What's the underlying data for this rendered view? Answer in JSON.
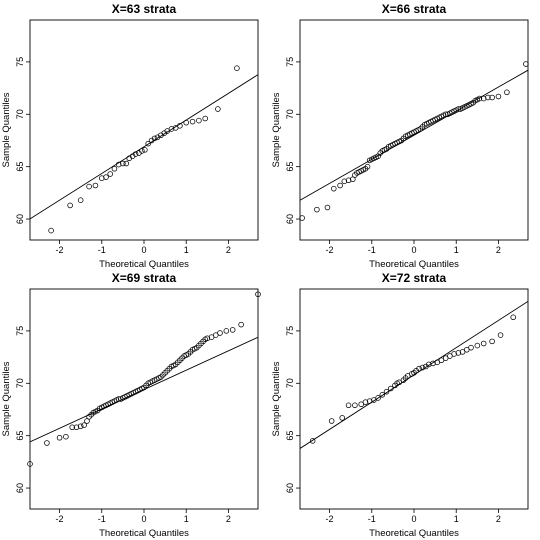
{
  "chart_data": [
    {
      "type": "scatter",
      "title": "X=63 strata",
      "xlabel": "Theoretical Quantiles",
      "ylabel": "Sample Quantiles",
      "x_ticks": [
        -2,
        -1,
        0,
        1,
        2
      ],
      "y_ticks": [
        60,
        65,
        70,
        75
      ],
      "xlim": [
        -2.7,
        2.7
      ],
      "ylim": [
        58,
        79
      ],
      "line": {
        "intercept": 66.9,
        "slope": 2.55
      },
      "points": {
        "x": [
          -2.2,
          -1.75,
          -1.5,
          -1.3,
          -1.15,
          -1.0,
          -0.9,
          -0.8,
          -0.7,
          -0.6,
          -0.5,
          -0.42,
          -0.35,
          -0.27,
          -0.2,
          -0.12,
          -0.05,
          0.02,
          0.1,
          0.18,
          0.25,
          0.32,
          0.4,
          0.48,
          0.55,
          0.65,
          0.75,
          0.85,
          1.0,
          1.15,
          1.3,
          1.45,
          1.75,
          2.2
        ],
        "y": [
          58.9,
          61.3,
          61.8,
          63.1,
          63.2,
          63.9,
          64.0,
          64.3,
          64.8,
          65.2,
          65.3,
          65.3,
          65.8,
          66.0,
          66.2,
          66.3,
          66.5,
          66.6,
          67.2,
          67.5,
          67.7,
          67.8,
          68.0,
          68.2,
          68.4,
          68.6,
          68.7,
          68.9,
          69.2,
          69.3,
          69.4,
          69.6,
          70.5,
          74.4
        ]
      }
    },
    {
      "type": "scatter",
      "title": "X=66 strata",
      "xlabel": "Theoretical Quantiles",
      "ylabel": "Sample Quantiles",
      "x_ticks": [
        -2,
        -1,
        0,
        1,
        2
      ],
      "y_ticks": [
        60,
        65,
        70,
        75
      ],
      "xlim": [
        -2.7,
        2.7
      ],
      "ylim": [
        58,
        79
      ],
      "line": {
        "intercept": 68.0,
        "slope": 2.3
      },
      "points": {
        "x": [
          -2.65,
          -2.3,
          -2.05,
          -1.9,
          -1.75,
          -1.65,
          -1.55,
          -1.45,
          -1.4,
          -1.35,
          -1.3,
          -1.25,
          -1.2,
          -1.15,
          -1.1,
          -1.05,
          -1.0,
          -0.95,
          -0.9,
          -0.85,
          -0.8,
          -0.75,
          -0.7,
          -0.65,
          -0.6,
          -0.55,
          -0.5,
          -0.45,
          -0.4,
          -0.35,
          -0.3,
          -0.25,
          -0.2,
          -0.15,
          -0.1,
          -0.05,
          0.0,
          0.05,
          0.1,
          0.15,
          0.2,
          0.25,
          0.3,
          0.35,
          0.4,
          0.45,
          0.5,
          0.55,
          0.6,
          0.65,
          0.7,
          0.75,
          0.8,
          0.85,
          0.9,
          0.95,
          1.0,
          1.05,
          1.1,
          1.15,
          1.2,
          1.25,
          1.3,
          1.35,
          1.4,
          1.45,
          1.5,
          1.55,
          1.65,
          1.75,
          1.85,
          2.0,
          2.2,
          2.65
        ],
        "y": [
          60.1,
          60.9,
          61.1,
          62.9,
          63.2,
          63.6,
          63.7,
          63.8,
          64.2,
          64.4,
          64.5,
          64.6,
          64.7,
          64.8,
          65.0,
          65.6,
          65.7,
          65.8,
          65.9,
          66.0,
          66.3,
          66.5,
          66.6,
          66.7,
          66.9,
          67.0,
          67.1,
          67.2,
          67.3,
          67.4,
          67.5,
          67.7,
          67.9,
          68.0,
          68.1,
          68.2,
          68.3,
          68.4,
          68.5,
          68.6,
          68.8,
          69.0,
          69.1,
          69.2,
          69.3,
          69.4,
          69.5,
          69.6,
          69.7,
          69.8,
          69.9,
          70.0,
          70.0,
          70.1,
          70.2,
          70.3,
          70.4,
          70.5,
          70.5,
          70.6,
          70.7,
          70.8,
          70.9,
          71.0,
          71.1,
          71.3,
          71.4,
          71.5,
          71.5,
          71.6,
          71.6,
          71.7,
          72.1,
          74.8
        ]
      }
    },
    {
      "type": "scatter",
      "title": "X=69 strata",
      "xlabel": "Theoretical Quantiles",
      "ylabel": "Sample Quantiles",
      "x_ticks": [
        -2,
        -1,
        0,
        1,
        2
      ],
      "y_ticks": [
        60,
        65,
        70,
        75
      ],
      "xlim": [
        -2.7,
        2.7
      ],
      "ylim": [
        58,
        79
      ],
      "line": {
        "intercept": 69.4,
        "slope": 1.85
      },
      "points": {
        "x": [
          -2.7,
          -2.3,
          -2.0,
          -1.85,
          -1.7,
          -1.6,
          -1.5,
          -1.42,
          -1.35,
          -1.3,
          -1.25,
          -1.2,
          -1.15,
          -1.1,
          -1.05,
          -1.0,
          -0.95,
          -0.9,
          -0.85,
          -0.8,
          -0.75,
          -0.7,
          -0.65,
          -0.6,
          -0.55,
          -0.5,
          -0.45,
          -0.4,
          -0.35,
          -0.3,
          -0.25,
          -0.2,
          -0.15,
          -0.1,
          -0.05,
          0.0,
          0.05,
          0.1,
          0.15,
          0.2,
          0.25,
          0.3,
          0.35,
          0.4,
          0.45,
          0.5,
          0.55,
          0.6,
          0.65,
          0.7,
          0.75,
          0.8,
          0.85,
          0.9,
          0.95,
          1.0,
          1.05,
          1.1,
          1.15,
          1.2,
          1.25,
          1.3,
          1.35,
          1.4,
          1.45,
          1.5,
          1.6,
          1.7,
          1.8,
          1.95,
          2.1,
          2.3,
          2.7
        ],
        "y": [
          62.3,
          64.3,
          64.8,
          64.9,
          65.8,
          65.8,
          65.9,
          66.0,
          66.4,
          66.8,
          67.0,
          67.2,
          67.3,
          67.4,
          67.6,
          67.7,
          67.8,
          67.9,
          68.0,
          68.1,
          68.2,
          68.3,
          68.4,
          68.5,
          68.5,
          68.6,
          68.7,
          68.8,
          68.9,
          69.0,
          69.1,
          69.2,
          69.3,
          69.4,
          69.5,
          69.6,
          69.8,
          70.0,
          70.1,
          70.2,
          70.3,
          70.4,
          70.5,
          70.6,
          70.8,
          71.0,
          71.2,
          71.4,
          71.6,
          71.7,
          71.8,
          72.0,
          72.2,
          72.4,
          72.6,
          72.7,
          72.8,
          73.0,
          73.2,
          73.3,
          73.4,
          73.6,
          73.8,
          74.0,
          74.2,
          74.3,
          74.4,
          74.6,
          74.8,
          75.0,
          75.1,
          75.6,
          78.5
        ]
      }
    },
    {
      "type": "scatter",
      "title": "X=72 strata",
      "xlabel": "Theoretical Quantiles",
      "ylabel": "Sample Quantiles",
      "x_ticks": [
        -2,
        -1,
        0,
        1,
        2
      ],
      "y_ticks": [
        60,
        65,
        70,
        75
      ],
      "xlim": [
        -2.7,
        2.7
      ],
      "ylim": [
        58,
        79
      ],
      "line": {
        "intercept": 70.8,
        "slope": 2.6
      },
      "points": {
        "x": [
          -2.4,
          -1.95,
          -1.7,
          -1.55,
          -1.4,
          -1.25,
          -1.15,
          -1.05,
          -0.95,
          -0.85,
          -0.75,
          -0.65,
          -0.55,
          -0.45,
          -0.4,
          -0.35,
          -0.25,
          -0.2,
          -0.15,
          -0.05,
          0.0,
          0.05,
          0.12,
          0.2,
          0.28,
          0.35,
          0.45,
          0.55,
          0.65,
          0.75,
          0.85,
          0.95,
          1.05,
          1.15,
          1.25,
          1.35,
          1.5,
          1.65,
          1.85,
          2.05,
          2.35
        ],
        "y": [
          64.5,
          66.4,
          66.7,
          67.9,
          67.9,
          68.0,
          68.2,
          68.3,
          68.4,
          68.6,
          68.9,
          69.2,
          69.5,
          69.8,
          70.0,
          70.1,
          70.3,
          70.5,
          70.7,
          70.9,
          71.0,
          71.2,
          71.4,
          71.5,
          71.6,
          71.8,
          71.9,
          72.0,
          72.2,
          72.4,
          72.6,
          72.8,
          72.9,
          73.0,
          73.2,
          73.4,
          73.6,
          73.8,
          74.0,
          74.6,
          76.3
        ]
      }
    }
  ]
}
